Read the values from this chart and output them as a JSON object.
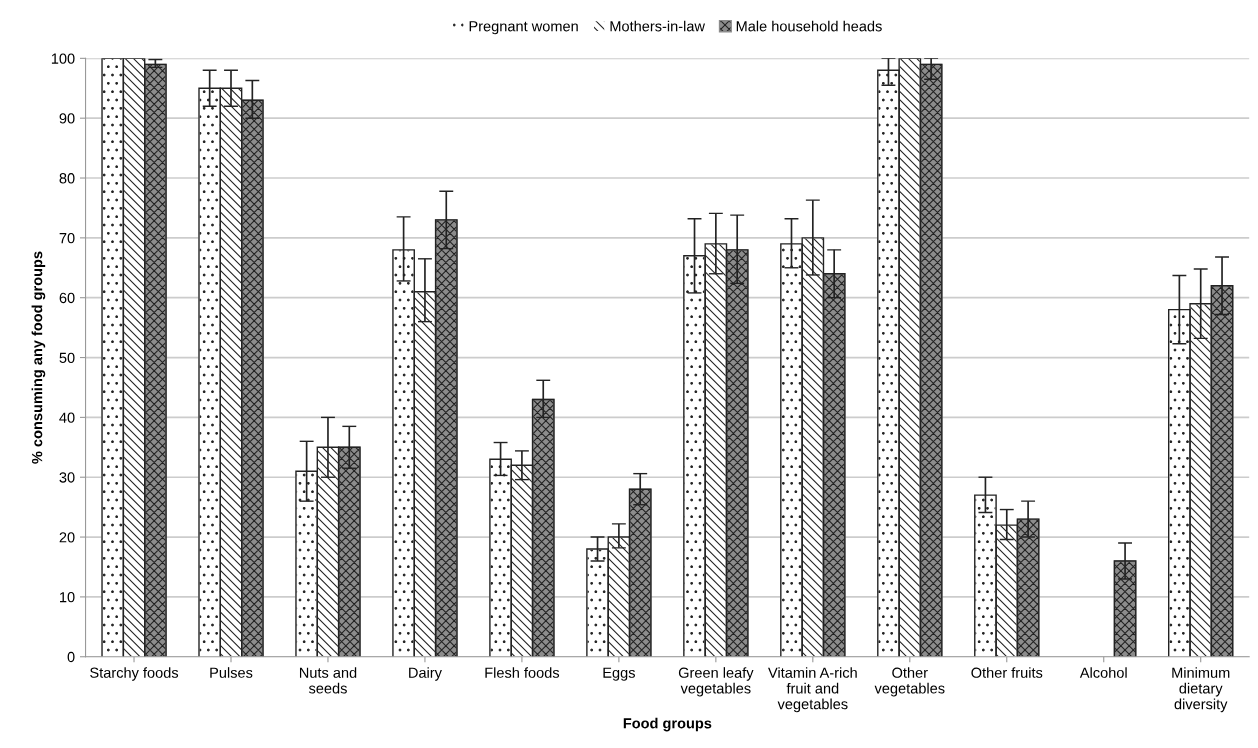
{
  "chart_data": {
    "type": "bar",
    "xlabel": "Food groups",
    "ylabel": "% consuming any food groups",
    "categories": [
      "Starchy foods",
      "Pulses",
      "Nuts and\nseeds",
      "Dairy",
      "Flesh foods",
      "Eggs",
      "Green leafy\nvegetables",
      "Vitamin A-rich\nfruit and\nvegetables",
      "Other\nvegetables",
      "Other fruits",
      "Alcohol",
      "Minimum\ndietary\ndiversity"
    ],
    "series": [
      {
        "name": "Pregnant women",
        "color": "#ffffff",
        "values": [
          100,
          95,
          31,
          68,
          33,
          18,
          67,
          69,
          98,
          27,
          null,
          58
        ],
        "errors": [
          null,
          [
            92,
            98
          ],
          [
            26,
            36
          ],
          [
            62.8,
            73.5
          ],
          [
            30.3,
            35.8
          ],
          [
            16,
            20
          ],
          [
            60.8,
            73.2
          ],
          [
            65,
            73.2
          ],
          [
            95.5,
            100
          ],
          [
            24.1,
            30
          ],
          null,
          [
            52.3,
            63.7
          ]
        ]
      },
      {
        "name": "Mothers-in-law",
        "color": "#ffffff",
        "values": [
          100,
          95,
          35,
          61,
          32,
          20,
          69,
          70,
          100,
          22,
          null,
          59
        ],
        "errors": [
          null,
          [
            92,
            98
          ],
          [
            30,
            40
          ],
          [
            56,
            66.5
          ],
          [
            29.6,
            34.4
          ],
          [
            18.2,
            22.2
          ],
          [
            64,
            74.1
          ],
          [
            63.8,
            76.3
          ],
          null,
          [
            19.6,
            24.6
          ],
          null,
          [
            53.2,
            64.8
          ]
        ]
      },
      {
        "name": "Male household heads",
        "color": "#8c8c8c",
        "values": [
          99,
          93,
          35,
          73,
          43,
          28,
          68,
          64,
          99,
          23,
          16,
          62
        ],
        "errors": [
          [
            98.5,
            99.8
          ],
          [
            90,
            96.3
          ],
          [
            31.5,
            38.5
          ],
          [
            68.2,
            77.8
          ],
          [
            40,
            46.2
          ],
          [
            25.4,
            30.6
          ],
          [
            62.4,
            73.8
          ],
          [
            60,
            68
          ],
          [
            96.5,
            100
          ],
          [
            20,
            26
          ],
          [
            13,
            19
          ],
          [
            57.2,
            66.8
          ]
        ]
      }
    ],
    "ylim": [
      0,
      100
    ],
    "yticks": [
      0,
      10,
      20,
      30,
      40,
      50,
      60,
      70,
      80,
      90,
      100
    ],
    "grid": "y",
    "legend": "top"
  }
}
